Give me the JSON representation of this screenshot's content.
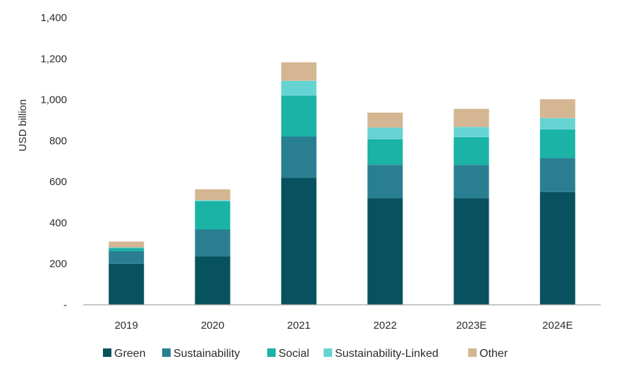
{
  "chart_data": {
    "type": "bar",
    "stacked": true,
    "title": "",
    "xlabel": "",
    "ylabel": "USD billion",
    "ylim": [
      0,
      1400
    ],
    "yticks": [
      0,
      200,
      400,
      600,
      800,
      1000,
      1200,
      1400
    ],
    "ytick_labels": [
      "-",
      "200",
      "400",
      "600",
      "800",
      "1,000",
      "1,200",
      "1,400"
    ],
    "grid": false,
    "legend_position": "bottom",
    "categories": [
      "2019",
      "2020",
      "2021",
      "2022",
      "2023E",
      "2024E"
    ],
    "series": [
      {
        "name": "Green",
        "color": "#08525f",
        "values": [
          200,
          235,
          620,
          520,
          520,
          550
        ]
      },
      {
        "name": "Sustainability",
        "color": "#297f91",
        "values": [
          62,
          132,
          200,
          162,
          162,
          165
        ]
      },
      {
        "name": "Social",
        "color": "#1ab3a6",
        "values": [
          15,
          138,
          200,
          125,
          135,
          140
        ]
      },
      {
        "name": "Sustainability-Linked",
        "color": "#66d3d3",
        "values": [
          3,
          5,
          72,
          57,
          50,
          55
        ]
      },
      {
        "name": "Other",
        "color": "#d4b692",
        "values": [
          28,
          53,
          90,
          73,
          88,
          92
        ]
      }
    ]
  }
}
